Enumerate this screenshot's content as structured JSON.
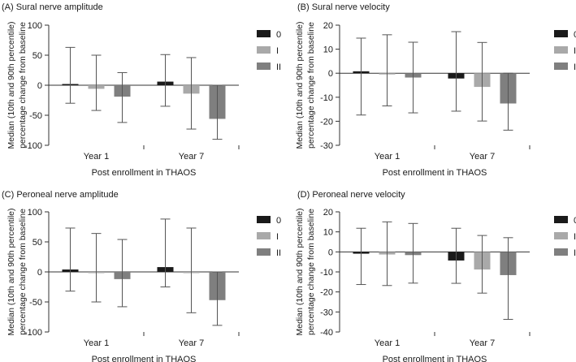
{
  "legend_labels": [
    "0",
    "I",
    "II"
  ],
  "colors": [
    "#1a1a1a",
    "#a9a9a9",
    "#7f7f7f"
  ],
  "chart_data": [
    {
      "type": "bar",
      "title": "(A) Sural nerve amplitude",
      "categories": [
        "Year 1",
        "Year 7"
      ],
      "xlabel": "Post enrollment in THAOS",
      "ylabel": [
        "Median (10th and 90th percentile)",
        "percentage change from baseline"
      ],
      "ylim": [
        -100,
        100
      ],
      "yticks": [
        -100,
        -50,
        0,
        50,
        100
      ],
      "series": [
        {
          "name": "0",
          "values": [
            2,
            6
          ],
          "p10": [
            -30,
            -35
          ],
          "p90": [
            63,
            51
          ]
        },
        {
          "name": "I",
          "values": [
            -6,
            -14
          ],
          "p10": [
            -42,
            -73
          ],
          "p90": [
            50,
            46
          ]
        },
        {
          "name": "II",
          "values": [
            -19,
            -56
          ],
          "p10": [
            -62,
            -90
          ],
          "p90": [
            21,
            0
          ]
        }
      ]
    },
    {
      "type": "bar",
      "title": "(B) Sural nerve velocity",
      "categories": [
        "Year 1",
        "Year 7"
      ],
      "xlabel": "Post enrollment in THAOS",
      "ylabel": [
        "Median (10th and 90th percentile)",
        "percentage change from baseline"
      ],
      "ylim": [
        -30,
        20
      ],
      "yticks": [
        -30,
        -20,
        -10,
        0,
        10,
        20
      ],
      "series": [
        {
          "name": "0",
          "values": [
            0.8,
            -2.2
          ],
          "p10": [
            -17.4,
            -15.8
          ],
          "p90": [
            14.6,
            17.3
          ]
        },
        {
          "name": "I",
          "values": [
            0,
            -5.7
          ],
          "p10": [
            -13.6,
            -19.9
          ],
          "p90": [
            16,
            12.8
          ]
        },
        {
          "name": "II",
          "values": [
            -1.8,
            -12.6
          ],
          "p10": [
            -16.5,
            -23.7
          ],
          "p90": [
            12.9,
            0
          ]
        }
      ]
    },
    {
      "type": "bar",
      "title": "(C) Peroneal nerve amplitude",
      "categories": [
        "Year 1",
        "Year 7"
      ],
      "xlabel": "Post enrollment in THAOS",
      "ylabel": [
        "Median (10th and 90th percentile)",
        "percentage change from baseline"
      ],
      "ylim": [
        -100,
        100
      ],
      "yticks": [
        -100,
        -50,
        0,
        50,
        100
      ],
      "series": [
        {
          "name": "0",
          "values": [
            4,
            8
          ],
          "p10": [
            -32,
            -25
          ],
          "p90": [
            73,
            88
          ]
        },
        {
          "name": "I",
          "values": [
            -2,
            -1
          ],
          "p10": [
            -50,
            -68
          ],
          "p90": [
            64,
            73
          ]
        },
        {
          "name": "II",
          "values": [
            -12,
            -47
          ],
          "p10": [
            -58,
            -89
          ],
          "p90": [
            54,
            0
          ]
        }
      ]
    },
    {
      "type": "bar",
      "title": "(D) Peroneal nerve velocity",
      "categories": [
        "Year 1",
        "Year 7"
      ],
      "xlabel": "Post enrollment in THAOS",
      "ylabel": [
        "Median (10th and 90th percentile)",
        "percentage change from baseline"
      ],
      "ylim": [
        -40,
        20
      ],
      "yticks": [
        -40,
        -30,
        -20,
        -10,
        0,
        10,
        20
      ],
      "series": [
        {
          "name": "0",
          "values": [
            -0.9,
            -4.3
          ],
          "p10": [
            -16.3,
            -15.7
          ],
          "p90": [
            11.8,
            11.8
          ]
        },
        {
          "name": "I",
          "values": [
            -1.3,
            -8.8
          ],
          "p10": [
            -16.8,
            -20.6
          ],
          "p90": [
            15,
            8.2
          ]
        },
        {
          "name": "II",
          "values": [
            -1.6,
            -11.6
          ],
          "p10": [
            -15.6,
            -33.7
          ],
          "p90": [
            14.2,
            7.1
          ]
        }
      ]
    }
  ]
}
